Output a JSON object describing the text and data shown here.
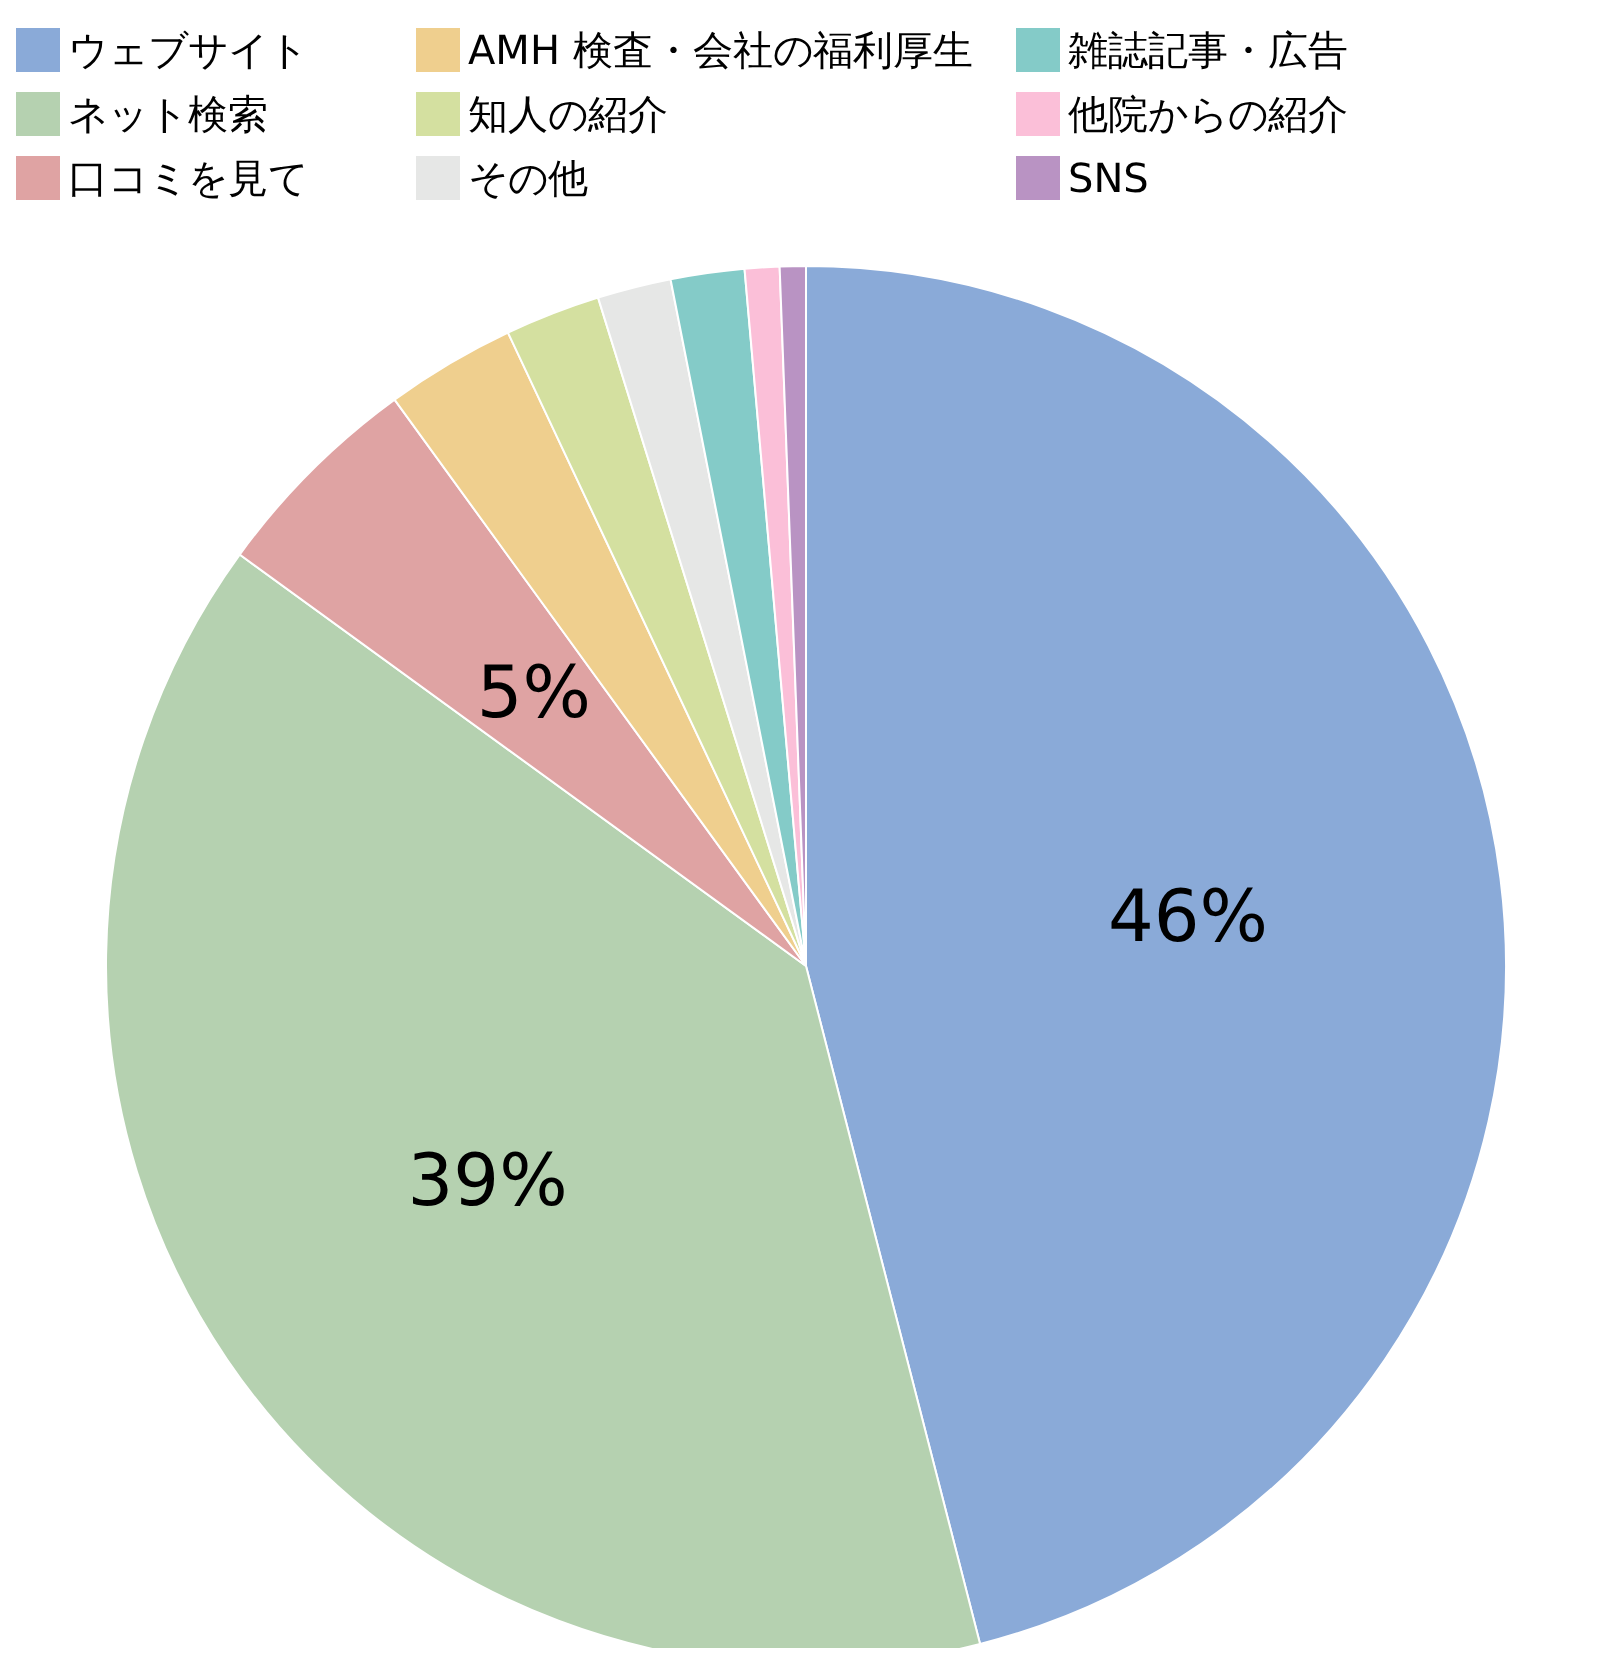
{
  "chart_data": {
    "type": "pie",
    "categories": [
      "ウェブサイト",
      "ネット検索",
      "口コミを見て",
      "AMH 検査・会社の福利厚生",
      "知人の紹介",
      "その他",
      "雑誌記事・広告",
      "他院からの紹介",
      "SNS"
    ],
    "values": [
      46,
      39,
      5,
      3,
      2.2,
      1.7,
      1.7,
      0.8,
      0.6
    ],
    "colors": [
      "#8aaad8",
      "#b5d1b0",
      "#dfa3a3",
      "#efcf8e",
      "#d4e0a0",
      "#e6e7e6",
      "#84cbc8",
      "#fbbfd8",
      "#b993c3"
    ],
    "value_labels": [
      "46%",
      "39%",
      "5%",
      null,
      null,
      null,
      null,
      null,
      null
    ],
    "legend": "top"
  }
}
